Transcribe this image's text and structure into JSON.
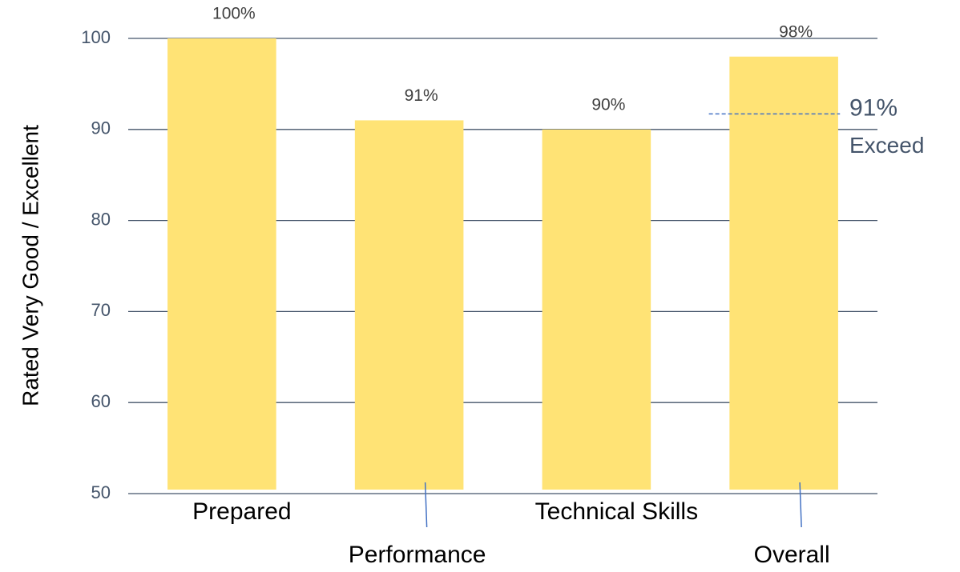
{
  "chart_data": {
    "type": "bar",
    "ylabel": "Rated Very Good / Excellent",
    "categories": [
      "Prepared",
      "Performance",
      "Technical Skills",
      "Overall"
    ],
    "values": [
      100,
      91,
      90,
      98
    ],
    "value_labels": [
      "100%",
      "91%",
      "90%",
      "98%"
    ],
    "color": "#ffe375",
    "ylim": [
      50,
      100
    ],
    "yticks": [
      50,
      60,
      70,
      80,
      90,
      100
    ],
    "grid": true,
    "reference_line": {
      "value": 91,
      "label": "91%",
      "text": "Exceed",
      "color": "#4472c4"
    }
  }
}
